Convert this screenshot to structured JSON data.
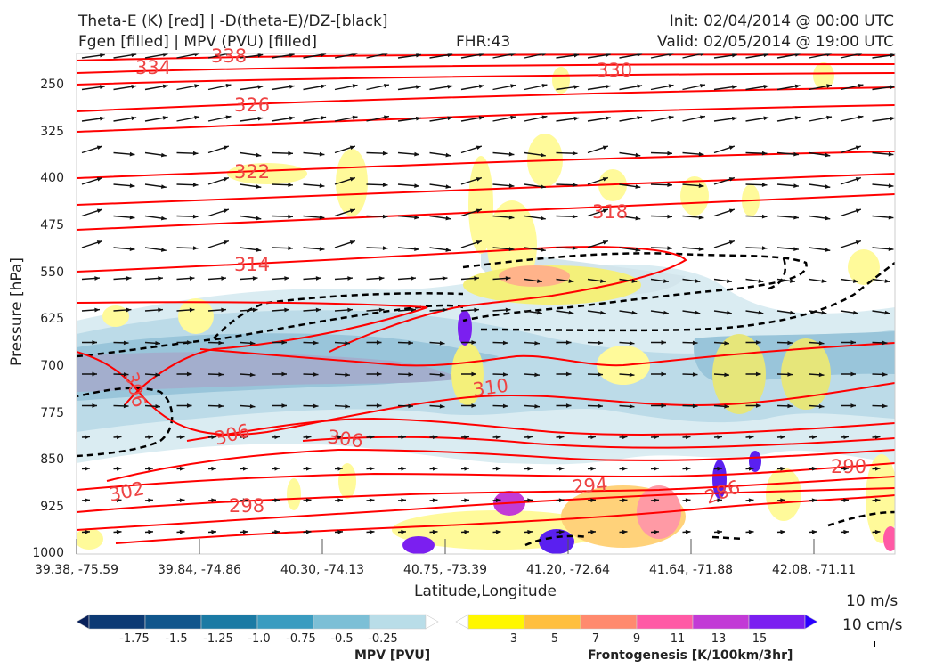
{
  "header": {
    "title_left_1": "Theta-E (K) [red] | -D(theta-E)/DZ-[black]",
    "title_left_2": "Fgen [filled] | MPV (PVU) [filled]",
    "fhr": "FHR:43",
    "init": "Init: 02/04/2014 @ 00:00 UTC",
    "valid": "Valid: 02/05/2014 @ 19:00 UTC"
  },
  "chart_data": {
    "type": "cross-section",
    "xlabel": "Latitude,Longitude",
    "ylabel": "Pressure [hPa]",
    "x_ticks": [
      "39.38, -75.59",
      "39.84, -74.86",
      "40.30, -74.13",
      "40.75, -73.39",
      "41.20, -72.64",
      "41.64, -71.88",
      "42.08, -71.11"
    ],
    "y_ticks": [
      250,
      325,
      400,
      475,
      550,
      625,
      700,
      775,
      850,
      925,
      1000
    ],
    "ylim": [
      1000,
      190
    ],
    "theta_e_labels": [
      "338",
      "334",
      "330",
      "326",
      "322",
      "318",
      "314",
      "310",
      "306",
      "306",
      "306",
      "302",
      "298",
      "294",
      "290",
      "286"
    ],
    "colors": {
      "theta_e": "#ff0000",
      "dtheta_dz": "#000000"
    }
  },
  "colorbars": {
    "mpv": {
      "title": "MPV [PVU]",
      "labels": [
        "-1.75",
        "-1.5",
        "-1.25",
        "-1.0",
        "-0.75",
        "-0.5",
        "-0.25"
      ],
      "colors": [
        "#08205a",
        "#0d3a74",
        "#11568c",
        "#1b7aa4",
        "#3a9cc0",
        "#7cbfd6",
        "#b9dde8",
        "#ffffff"
      ]
    },
    "fgen": {
      "title": "Frontogenesis [K/100km/3hr]",
      "labels": [
        "3",
        "5",
        "7",
        "9",
        "11",
        "13",
        "15"
      ],
      "colors": [
        "#ffffff",
        "#fff700",
        "#ffbf3f",
        "#ff8a6e",
        "#ff5aa5",
        "#c23ad6",
        "#7b1ff0",
        "#2a00ff"
      ]
    }
  },
  "wind_scale": {
    "label1": "10 m/s",
    "label2": "10 cm/s"
  }
}
